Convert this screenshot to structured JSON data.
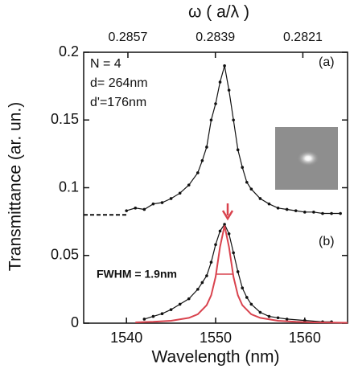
{
  "chart_data": {
    "type": "line",
    "xlabel": "Wavelength (nm)",
    "ylabel": "Transmittance (ar. un.)",
    "x2label": "ω ( a/λ )",
    "xlim": [
      1535.2,
      1564.8
    ],
    "xticks": [
      1540,
      1550,
      1560
    ],
    "x2lim": [
      0.28661,
      0.28118
    ],
    "x2ticks": [
      0.2857,
      0.2839,
      0.2821
    ],
    "ylim": [
      0,
      0.2
    ],
    "yticks": [
      0,
      0.05,
      0.1,
      0.15,
      0.2
    ],
    "annotations": [
      "N = 4",
      "d= 264nm",
      "d'=176nm",
      "(a)",
      "(b)",
      "FWHM = 1.9nm"
    ],
    "series": [
      {
        "color": "#111111",
        "dashed": true,
        "markers": false,
        "x": [
          1535.2,
          1540
        ],
        "values": [
          0.08,
          0.08
        ]
      },
      {
        "color": "#111111",
        "dashed": false,
        "markers": true,
        "x": [
          1540,
          1541,
          1542,
          1543,
          1544,
          1545,
          1546,
          1547,
          1548,
          1548.5,
          1549,
          1549.5,
          1550,
          1550.5,
          1551,
          1551.5,
          1552,
          1552.5,
          1553,
          1553.5,
          1554,
          1555,
          1556,
          1557,
          1558,
          1559,
          1560,
          1561,
          1562,
          1563,
          1564
        ],
        "values": [
          0.083,
          0.085,
          0.084,
          0.088,
          0.089,
          0.092,
          0.096,
          0.102,
          0.111,
          0.12,
          0.13,
          0.15,
          0.162,
          0.178,
          0.19,
          0.172,
          0.15,
          0.128,
          0.115,
          0.104,
          0.099,
          0.092,
          0.088,
          0.085,
          0.084,
          0.083,
          0.082,
          0.082,
          0.081,
          0.081,
          0.081
        ]
      },
      {
        "color": "#111111",
        "dashed": false,
        "markers": true,
        "x": [
          1542,
          1543,
          1544,
          1545,
          1546,
          1547,
          1548,
          1548.5,
          1549,
          1549.5,
          1550,
          1550.5,
          1551,
          1551.5,
          1552,
          1552.5,
          1553,
          1553.5,
          1554,
          1555,
          1556,
          1557,
          1558,
          1560,
          1562,
          1563
        ],
        "values": [
          0.003,
          0.005,
          0.007,
          0.01,
          0.014,
          0.018,
          0.025,
          0.03,
          0.035,
          0.045,
          0.058,
          0.068,
          0.073,
          0.066,
          0.052,
          0.038,
          0.026,
          0.019,
          0.014,
          0.008,
          0.005,
          0.004,
          0.003,
          0.002,
          0.001,
          0.001
        ]
      },
      {
        "color": "#d9434e",
        "dashed": false,
        "markers": false,
        "x": [
          1541,
          1543,
          1545,
          1547,
          1548,
          1549,
          1549.5,
          1550,
          1550.5,
          1551,
          1551.5,
          1552,
          1552.5,
          1553,
          1554,
          1555,
          1557,
          1559,
          1561,
          1563,
          1564.8
        ],
        "values": [
          0.0006,
          0.001,
          0.0018,
          0.0039,
          0.0066,
          0.0133,
          0.0206,
          0.0342,
          0.0564,
          0.072,
          0.0564,
          0.0342,
          0.0206,
          0.0133,
          0.0066,
          0.0039,
          0.0018,
          0.001,
          0.0006,
          0.0005,
          0.0003
        ]
      }
    ]
  }
}
